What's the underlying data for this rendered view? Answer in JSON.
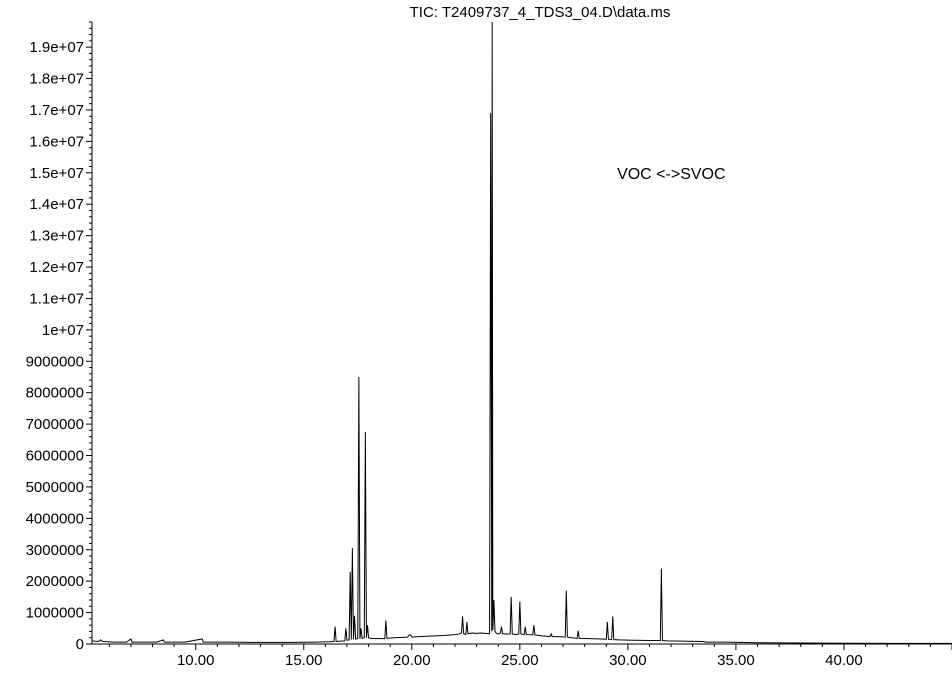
{
  "chart_data": {
    "type": "line",
    "title": "TIC: T2409737_4_TDS3_04.D\\data.ms",
    "xlabel": "",
    "ylabel": "",
    "xlim": [
      5.2,
      45.0
    ],
    "ylim": [
      0,
      19800000
    ],
    "grid": false,
    "line_color": "#000000",
    "annotations": [
      {
        "text": "VOC <->SVOC",
        "x": 29.5,
        "y": 15000000
      }
    ],
    "x_ticks": [
      {
        "value": 10,
        "label": "10.00"
      },
      {
        "value": 15,
        "label": "15.00"
      },
      {
        "value": 20,
        "label": "20.00"
      },
      {
        "value": 25,
        "label": "25.00"
      },
      {
        "value": 30,
        "label": "30.00"
      },
      {
        "value": 35,
        "label": "35.00"
      },
      {
        "value": 40,
        "label": "40.00"
      }
    ],
    "y_ticks": [
      {
        "value": 0,
        "label": "0"
      },
      {
        "value": 1000000,
        "label": "1000000"
      },
      {
        "value": 2000000,
        "label": "2000000"
      },
      {
        "value": 3000000,
        "label": "3000000"
      },
      {
        "value": 4000000,
        "label": "4000000"
      },
      {
        "value": 5000000,
        "label": "5000000"
      },
      {
        "value": 6000000,
        "label": "6000000"
      },
      {
        "value": 7000000,
        "label": "7000000"
      },
      {
        "value": 8000000,
        "label": "8000000"
      },
      {
        "value": 9000000,
        "label": "9000000"
      },
      {
        "value": 10000000,
        "label": "1e+07"
      },
      {
        "value": 11000000,
        "label": "1.1e+07"
      },
      {
        "value": 12000000,
        "label": "1.2e+07"
      },
      {
        "value": 13000000,
        "label": "1.3e+07"
      },
      {
        "value": 14000000,
        "label": "1.4e+07"
      },
      {
        "value": 15000000,
        "label": "1.5e+07"
      },
      {
        "value": 16000000,
        "label": "1.6e+07"
      },
      {
        "value": 17000000,
        "label": "1.7e+07"
      },
      {
        "value": 18000000,
        "label": "1.8e+07"
      },
      {
        "value": 19000000,
        "label": "1.9e+07"
      }
    ],
    "series": [
      {
        "x": [
          5.2,
          5.5,
          5.6,
          5.7,
          6.2,
          6.8,
          7.0,
          7.05,
          7.1,
          7.5,
          8.2,
          8.5,
          8.55,
          8.6,
          9.5,
          10.3,
          10.35,
          10.4,
          11.5,
          12.5,
          13.5,
          14.5,
          15.5,
          16.2,
          16.4,
          16.45,
          16.5,
          16.7,
          16.9,
          16.95,
          17.0,
          17.1,
          17.15,
          17.2,
          17.25,
          17.3,
          17.35,
          17.4,
          17.5,
          17.55,
          17.6,
          17.65,
          17.7,
          17.8,
          17.85,
          17.9,
          17.95,
          18.0,
          18.1,
          18.5,
          18.75,
          18.8,
          18.85,
          19.2,
          19.8,
          19.9,
          19.95,
          20.0,
          20.2,
          20.8,
          21.5,
          22.0,
          22.2,
          22.3,
          22.35,
          22.4,
          22.5,
          22.55,
          22.6,
          22.8,
          23.0,
          23.2,
          23.4,
          23.55,
          23.6,
          23.65,
          23.7,
          23.72,
          23.75,
          23.8,
          23.85,
          23.9,
          24.0,
          24.1,
          24.15,
          24.2,
          24.4,
          24.55,
          24.6,
          24.65,
          24.8,
          24.95,
          25.0,
          25.05,
          25.2,
          25.25,
          25.3,
          25.6,
          25.65,
          25.7,
          26.0,
          26.4,
          26.45,
          26.5,
          26.9,
          27.1,
          27.15,
          27.2,
          27.4,
          27.65,
          27.7,
          27.75,
          28.2,
          28.8,
          29.0,
          29.05,
          29.1,
          29.25,
          29.3,
          29.35,
          29.6,
          30.2,
          31.0,
          31.4,
          31.5,
          31.55,
          31.6,
          31.8,
          32.5,
          33.5,
          33.6,
          34.5,
          36.0,
          38.0,
          40.0,
          42.0,
          44.0,
          45.0
        ],
        "y": [
          100000,
          80000,
          130000,
          80000,
          60000,
          60000,
          160000,
          60000,
          60000,
          60000,
          60000,
          130000,
          60000,
          60000,
          60000,
          160000,
          60000,
          60000,
          60000,
          50000,
          50000,
          50000,
          60000,
          70000,
          80000,
          550000,
          80000,
          90000,
          100000,
          500000,
          120000,
          130000,
          2300000,
          140000,
          3050000,
          150000,
          900000,
          160000,
          170000,
          8500000,
          170000,
          500000,
          180000,
          200000,
          6750000,
          200000,
          600000,
          200000,
          180000,
          170000,
          170000,
          750000,
          180000,
          200000,
          220000,
          300000,
          280000,
          220000,
          230000,
          250000,
          270000,
          300000,
          320000,
          350000,
          880000,
          330000,
          300000,
          700000,
          330000,
          350000,
          340000,
          350000,
          340000,
          330000,
          330000,
          16900000,
          400000,
          19800000,
          450000,
          1400000,
          400000,
          350000,
          320000,
          350000,
          550000,
          330000,
          320000,
          320000,
          1500000,
          320000,
          300000,
          320000,
          1350000,
          320000,
          300000,
          550000,
          300000,
          290000,
          600000,
          290000,
          260000,
          240000,
          320000,
          240000,
          230000,
          220000,
          1700000,
          220000,
          200000,
          180000,
          420000,
          180000,
          170000,
          160000,
          150000,
          700000,
          150000,
          140000,
          880000,
          140000,
          130000,
          120000,
          110000,
          110000,
          110000,
          2400000,
          110000,
          100000,
          90000,
          80000,
          60000,
          60000,
          40000,
          30000,
          25000,
          20000,
          20000,
          20000
        ]
      }
    ]
  }
}
